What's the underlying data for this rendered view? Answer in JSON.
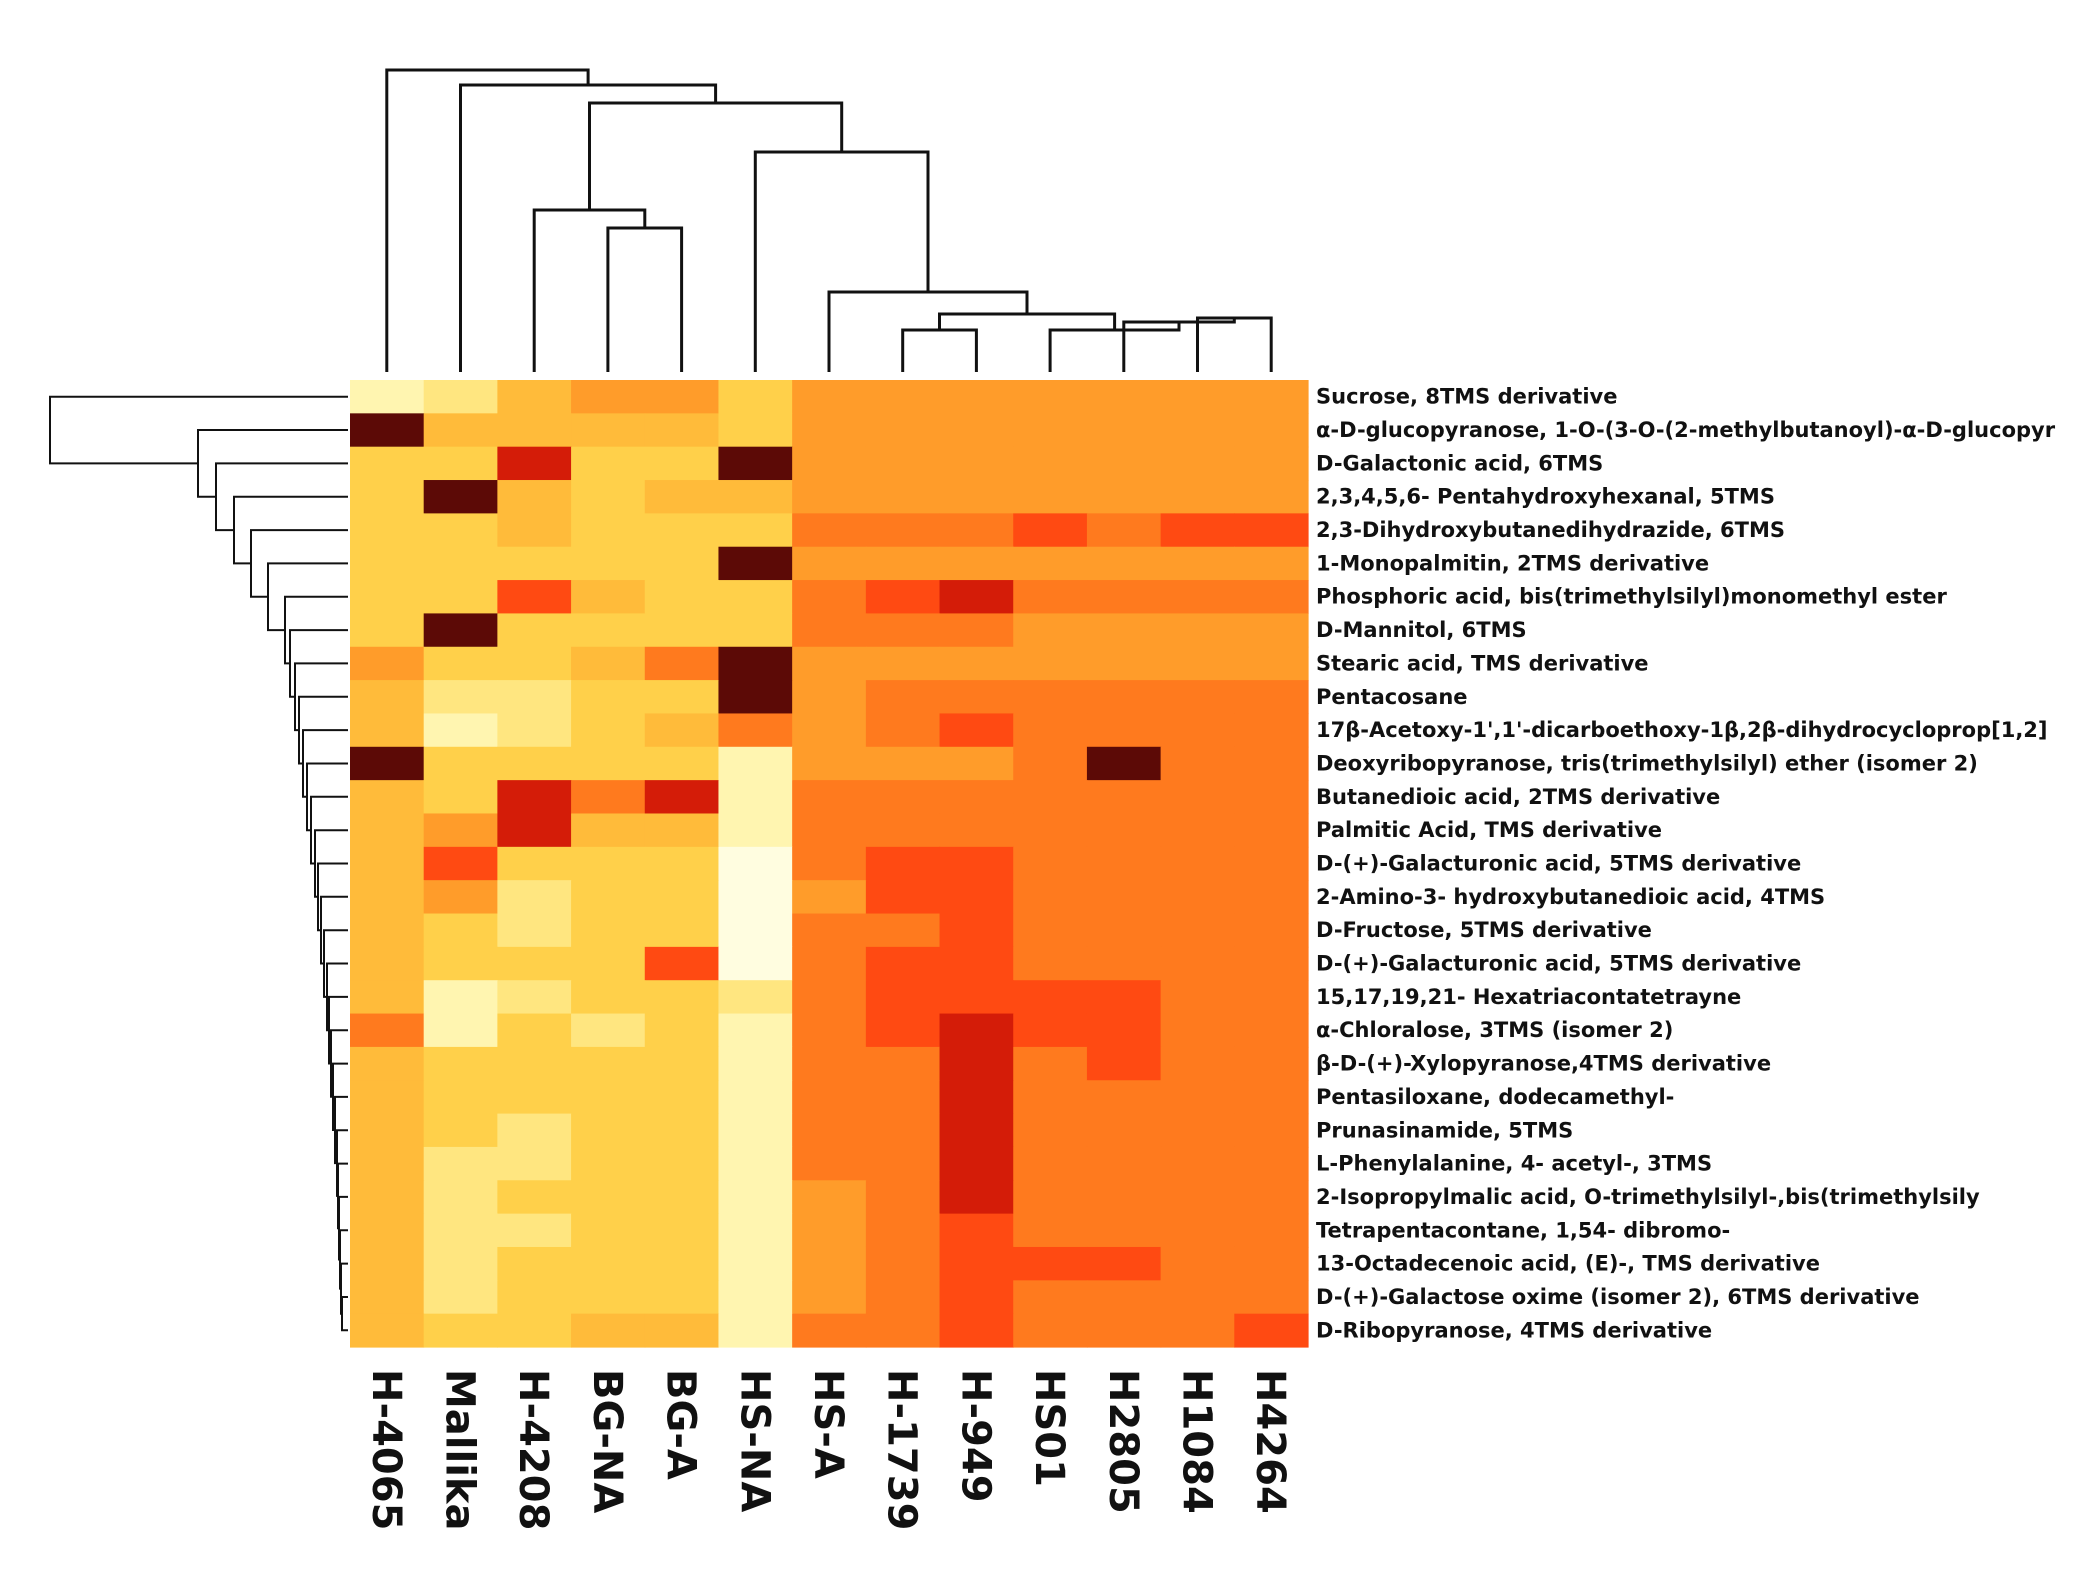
{
  "chart_data": {
    "type": "heatmap",
    "title": "",
    "xlabel": "",
    "ylabel": "",
    "columns": [
      "H-4065",
      "Mallika",
      "H-4208",
      "BG-NA",
      "BG-A",
      "HS-NA",
      "HS-A",
      "H-1739",
      "H-949",
      "HS01",
      "H2805",
      "H1084",
      "H4264"
    ],
    "rows": [
      "Sucrose, 8TMS derivative",
      "α-D-glucopyranose, 1-O-(3-O-(2-methylbutanoyl)-α-D-glucopyr",
      "D-Galactonic acid, 6TMS",
      "2,3,4,5,6- Pentahydroxyhexanal, 5TMS",
      "2,3-Dihydroxybutanedihydrazide, 6TMS",
      "1-Monopalmitin, 2TMS derivative",
      "Phosphoric acid, bis(trimethylsilyl)monomethyl ester",
      "D-Mannitol, 6TMS",
      "Stearic acid, TMS derivative",
      "Pentacosane",
      "17β-Acetoxy-1',1'-dicarboethoxy-1β,2β-dihydrocycloprop[1,2]",
      "Deoxyribopyranose, tris(trimethylsilyl) ether (isomer 2)",
      "Butanedioic acid, 2TMS derivative",
      "Palmitic Acid, TMS derivative",
      "D-(+)-Galacturonic acid, 5TMS derivative",
      "2-Amino-3- hydroxybutanedioic acid, 4TMS",
      "D-Fructose, 5TMS derivative",
      "D-(+)-Galacturonic acid, 5TMS derivative",
      "15,17,19,21- Hexatriacontatetrayne",
      "α-Chloralose, 3TMS (isomer 2)",
      "β-D-(+)-Xylopyranose,4TMS derivative",
      "Pentasiloxane, dodecamethyl-",
      "Prunasinamide, 5TMS",
      "L-Phenylalanine, 4- acetyl-, 3TMS",
      "2-Isopropylmalic acid, O-trimethylsilyl-,bis(trimethylsily",
      "Tetrapentacontane, 1,54- dibromo-",
      "13-Octadecenoic acid, (E)-, TMS derivative",
      "D-(+)-Galactose oxime (isomer 2), 6TMS derivative",
      "D-Ribopyranose, 4TMS derivative"
    ],
    "values": [
      [
        1,
        2,
        4,
        5,
        5,
        3,
        5,
        5,
        5,
        5,
        5,
        5,
        5
      ],
      [
        9,
        4,
        4,
        4,
        4,
        3,
        5,
        5,
        5,
        5,
        5,
        5,
        5
      ],
      [
        3,
        3,
        8,
        3,
        3,
        9,
        5,
        5,
        5,
        5,
        5,
        5,
        5
      ],
      [
        3,
        9,
        4,
        3,
        4,
        4,
        5,
        5,
        5,
        5,
        5,
        5,
        5
      ],
      [
        3,
        3,
        4,
        3,
        3,
        3,
        6,
        6,
        6,
        7,
        6,
        7,
        7
      ],
      [
        3,
        3,
        3,
        3,
        3,
        9,
        5,
        5,
        5,
        5,
        5,
        5,
        5
      ],
      [
        3,
        3,
        7,
        4,
        3,
        3,
        6,
        7,
        8,
        6,
        6,
        6,
        6
      ],
      [
        3,
        9,
        3,
        3,
        3,
        3,
        6,
        6,
        6,
        5,
        5,
        5,
        5
      ],
      [
        5,
        3,
        3,
        4,
        6,
        9,
        5,
        5,
        5,
        5,
        5,
        5,
        5
      ],
      [
        4,
        2,
        2,
        3,
        3,
        9,
        5,
        6,
        6,
        6,
        6,
        6,
        6
      ],
      [
        4,
        1,
        2,
        3,
        4,
        6,
        5,
        6,
        7,
        6,
        6,
        6,
        6
      ],
      [
        9,
        3,
        3,
        3,
        3,
        1,
        5,
        5,
        5,
        6,
        9,
        6,
        6
      ],
      [
        4,
        3,
        8,
        6,
        8,
        1,
        6,
        6,
        6,
        6,
        6,
        6,
        6
      ],
      [
        4,
        5,
        8,
        4,
        4,
        1,
        6,
        6,
        6,
        6,
        6,
        6,
        6
      ],
      [
        4,
        7,
        3,
        3,
        3,
        0,
        6,
        7,
        7,
        6,
        6,
        6,
        6
      ],
      [
        4,
        5,
        2,
        3,
        3,
        0,
        5,
        7,
        7,
        6,
        6,
        6,
        6
      ],
      [
        4,
        3,
        2,
        3,
        3,
        0,
        6,
        6,
        7,
        6,
        6,
        6,
        6
      ],
      [
        4,
        3,
        3,
        3,
        7,
        0,
        6,
        7,
        7,
        6,
        6,
        6,
        6
      ],
      [
        4,
        1,
        2,
        3,
        3,
        2,
        6,
        7,
        7,
        7,
        7,
        6,
        6
      ],
      [
        6,
        1,
        3,
        2,
        3,
        1,
        6,
        7,
        8,
        7,
        7,
        6,
        6
      ],
      [
        4,
        3,
        3,
        3,
        3,
        1,
        6,
        6,
        8,
        6,
        7,
        6,
        6
      ],
      [
        4,
        3,
        3,
        3,
        3,
        1,
        6,
        6,
        8,
        6,
        6,
        6,
        6
      ],
      [
        4,
        3,
        2,
        3,
        3,
        1,
        6,
        6,
        8,
        6,
        6,
        6,
        6
      ],
      [
        4,
        2,
        2,
        3,
        3,
        1,
        6,
        6,
        8,
        6,
        6,
        6,
        6
      ],
      [
        4,
        2,
        3,
        3,
        3,
        1,
        5,
        6,
        8,
        6,
        6,
        6,
        6
      ],
      [
        4,
        2,
        2,
        3,
        3,
        1,
        5,
        6,
        7,
        6,
        6,
        6,
        6
      ],
      [
        4,
        2,
        3,
        3,
        3,
        1,
        5,
        6,
        7,
        7,
        7,
        6,
        6
      ],
      [
        4,
        2,
        3,
        3,
        3,
        1,
        5,
        6,
        7,
        6,
        6,
        6,
        6
      ],
      [
        4,
        3,
        3,
        4,
        4,
        1,
        6,
        6,
        7,
        6,
        6,
        6,
        7
      ]
    ],
    "colormap": [
      "#fffde0",
      "#fff5b0",
      "#ffe680",
      "#ffd04a",
      "#ffbb3a",
      "#ff9c2a",
      "#ff7a1e",
      "#ff4a12",
      "#d41c08",
      "#5c0a06"
    ],
    "value_range": [
      0,
      9
    ]
  }
}
